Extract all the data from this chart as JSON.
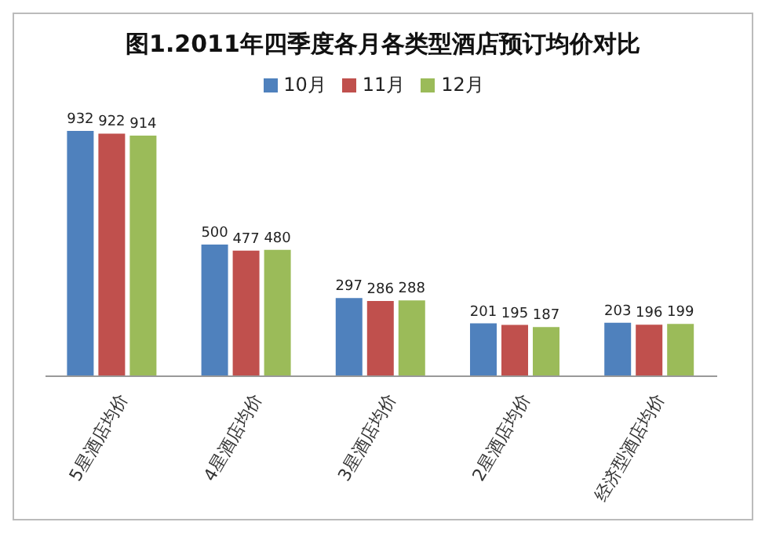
{
  "chart_data": {
    "type": "bar",
    "title": "图1.2011年四季度各月各类型酒店预订均价对比",
    "categories": [
      "5星酒店均价",
      "4星酒店均价",
      "3星酒店均价",
      "2星酒店均价",
      "经济型酒店均价"
    ],
    "series": [
      {
        "name": "10月",
        "color": "#4f81bd",
        "values": [
          932,
          500,
          297,
          201,
          203
        ]
      },
      {
        "name": "11月",
        "color": "#c0504d",
        "values": [
          922,
          477,
          286,
          195,
          196
        ]
      },
      {
        "name": "12月",
        "color": "#9bbb59",
        "values": [
          914,
          480,
          288,
          187,
          199
        ]
      }
    ],
    "data_labels": true,
    "legend": "top",
    "grid": false
  }
}
